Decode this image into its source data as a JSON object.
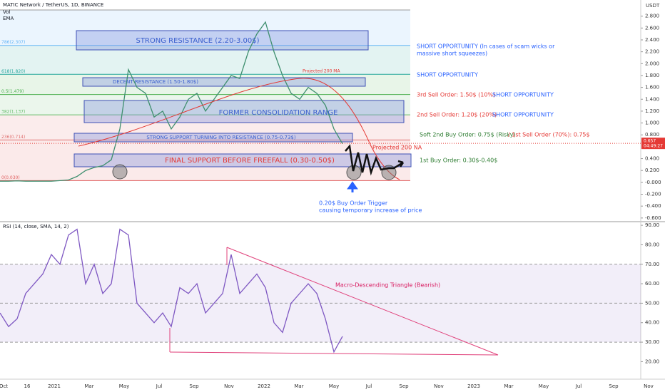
{
  "header": {
    "symbol": "MATIC Network / TetherUS, 1D, BINANCE",
    "vol": "Vol",
    "ema": "EMA",
    "currency": "USDT",
    "last_price": {
      "value": 0.657,
      "label": "0.657"
    },
    "countdown": "04:49:27"
  },
  "chart_data": [
    {
      "type": "line",
      "color": "#3f8f6f",
      "values": [
        0.02,
        0.02,
        0.025,
        0.02,
        0.02,
        0.02,
        0.02,
        0.03,
        0.04,
        0.1,
        0.2,
        0.25,
        0.28,
        0.38,
        0.9,
        1.9,
        1.6,
        1.5,
        1.1,
        1.2,
        0.9,
        1.1,
        1.4,
        1.5,
        1.2,
        1.4,
        1.6,
        1.8,
        1.75,
        2.2,
        2.5,
        2.7,
        2.2,
        1.8,
        1.5,
        1.4,
        1.6,
        1.5,
        1.3,
        0.9,
        0.65
      ],
      "ylim": [
        -0.65,
        3.0
      ],
      "yticks": [
        {
          "value": 2.8,
          "label": "2.800"
        },
        {
          "value": 2.6,
          "label": "2.600"
        },
        {
          "value": 2.4,
          "label": "2.400"
        },
        {
          "value": 2.2,
          "label": "2.200"
        },
        {
          "value": 2.0,
          "label": "2.000"
        },
        {
          "value": 1.8,
          "label": "1.800"
        },
        {
          "value": 1.6,
          "label": "1.600"
        },
        {
          "value": 1.4,
          "label": "1.400"
        },
        {
          "value": 1.2,
          "label": "1.200"
        },
        {
          "value": 1.0,
          "label": "1.000"
        },
        {
          "value": 0.8,
          "label": "0.800"
        },
        {
          "value": 0.4,
          "label": "0.400"
        },
        {
          "value": 0.2,
          "label": "0.200"
        },
        {
          "value": 0,
          "label": "-0.000"
        },
        {
          "value": -0.2,
          "label": "-0.200"
        },
        {
          "value": -0.4,
          "label": "-0.400"
        },
        {
          "value": -0.6,
          "label": "-0.600"
        }
      ],
      "fib_levels": [
        {
          "label": "0(0.030)",
          "value": 0.03,
          "color": "#e06060"
        },
        {
          "label": "236(0.714)",
          "value": 0.714,
          "color": "#e07070"
        },
        {
          "label": "382(1.137)",
          "value": 1.137,
          "color": "#66bb6a"
        },
        {
          "label": "0.5(1.479)",
          "value": 1.479,
          "color": "#4caf50"
        },
        {
          "label": "618(1.820)",
          "value": 1.82,
          "color": "#26a69a"
        },
        {
          "label": "786(2.307)",
          "value": 2.307,
          "color": "#64b5f6"
        }
      ]
    },
    {
      "type": "line",
      "title": "RSI (14, close, SMA, 14, 2)",
      "color": "#7e57c2",
      "values": [
        45,
        38,
        42,
        55,
        60,
        65,
        75,
        70,
        85,
        88,
        60,
        70,
        55,
        60,
        88,
        85,
        50,
        45,
        40,
        45,
        38,
        58,
        55,
        60,
        45,
        50,
        55,
        75,
        55,
        60,
        65,
        58,
        40,
        35,
        50,
        55,
        60,
        55,
        42,
        25,
        33
      ],
      "ylim": [
        11,
        91.5
      ],
      "yticks": [
        {
          "value": 90,
          "label": "90.00"
        },
        {
          "value": 80,
          "label": "80.00"
        },
        {
          "value": 70,
          "label": "70.00"
        },
        {
          "value": 60,
          "label": "60.00"
        },
        {
          "value": 50,
          "label": "50.00"
        },
        {
          "value": 40,
          "label": "40.00"
        },
        {
          "value": 30,
          "label": "30.00"
        },
        {
          "value": 20,
          "label": "20.00"
        }
      ],
      "band": [
        30,
        70
      ],
      "midline": 50
    }
  ],
  "time_axis": [
    "Oct",
    "16",
    "2021",
    "Mar",
    "May",
    "Jul",
    "Sep",
    "Nov",
    "2022",
    "Mar",
    "May",
    "Jul",
    "Sep",
    "Nov",
    "2023",
    "Mar",
    "May",
    "Jul",
    "Sep",
    "Nov"
  ],
  "zones": [
    "STRONG RESISTANCE (2.20-3.00$)",
    "DECENT RESISTANCE (1.50-1.80$)",
    "FORMER CONSOLIDATION RANGE",
    "STRONG SUPPORT TURNING INTO RESISTANCE (0.75-0.73$)",
    "FINAL SUPPORT BEFORE FREEFALL (0.30-0.50$)"
  ],
  "annotations": [
    "SHORT OPPORTUNITY (In cases of scam wicks or",
    "massive short squeezes)",
    "SHORT OPPORTUNITY",
    "3rd Sell Order: 1.50$ (10%)",
    "SHORT OPPORTUNITY",
    "2nd Sell Order: 1.20$ (20%)",
    "SHORT OPPORTUNITY",
    "Soft 2nd Buy Order: 0.75$ (Risky)",
    "/ 1st Sell Order (70%): 0.75$",
    "1st Buy Order: 0.30$-0.40$",
    "Projected 200 NA",
    "Projected 200 MA",
    "0.20$ Buy Order Trigger",
    "causing temporary increase of price",
    "Macro-Descending Triangle (Bearish)"
  ]
}
